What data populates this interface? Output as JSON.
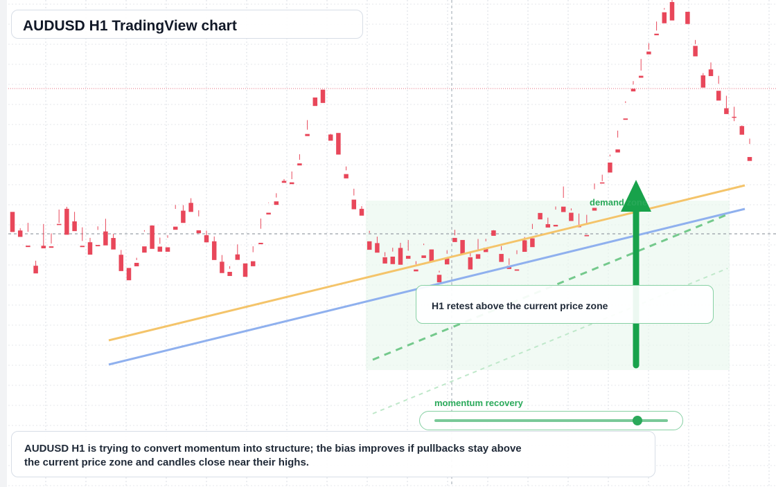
{
  "title": "AUDUSD H1 TradingView chart",
  "annotations": {
    "callout": "H1 retest above the current price zone",
    "demand_zone_label": "demand zone",
    "momentum_label": "momentum recovery",
    "momentum_level": 0.87,
    "summary": "AUDUSD H1 is trying to convert momentum into structure; the bias improves if pullbacks stay above the current price zone and candles close near their highs."
  },
  "colors": {
    "up": "#1a9c84",
    "down": "#e8475a",
    "accent_green": "#2aa95a",
    "orange_line": "#f4c46a",
    "blue_line": "#8fb0ee"
  },
  "chart_data": {
    "type": "candlestick",
    "title": "AUDUSD H1 TradingView chart",
    "xlabel": "",
    "ylabel": "",
    "x_tick_labels": [],
    "y_tick_labels": [],
    "price_range": [
      0,
      100
    ],
    "grid": true,
    "legend": "none",
    "candles": [
      [
        56.49,
        56.01,
        54.97,
        52.37
      ],
      [
        52.67,
        53.15,
        51.84,
        51.36
      ],
      [
        49.56,
        54.24,
        52.41,
        49.27
      ],
      [
        45.43,
        46.47,
        44.79,
        43.86
      ],
      [
        49.54,
        54.0,
        49.23,
        49.01
      ],
      [
        49.42,
        49.99,
        52.08,
        49.12
      ],
      [
        54.02,
        56.97,
        54.24,
        53.79
      ],
      [
        57.13,
        57.54,
        54.37,
        51.8
      ],
      [
        54.54,
        56.5,
        53.07,
        52.54
      ],
      [
        49.53,
        53.32,
        50.52,
        49.26
      ],
      [
        50.26,
        51.16,
        49.88,
        47.71
      ],
      [
        49.7,
        53.52,
        52.79,
        49.44
      ],
      [
        52.47,
        55.08,
        51.18,
        49.61
      ],
      [
        51.13,
        51.97,
        48.82,
        48.77
      ],
      [
        47.69,
        48.67,
        45.42,
        44.34
      ],
      [
        44.98,
        44.96,
        44.94,
        42.45
      ],
      [
        46.03,
        47.07,
        46.6,
        45.32
      ],
      [
        49.41,
        52.45,
        52.73,
        48.13
      ],
      [
        53.69,
        53.74,
        49.49,
        48.9
      ],
      [
        49.36,
        51.21,
        49.93,
        48.32
      ],
      [
        49.22,
        51.18,
        51.69,
        48.31
      ],
      [
        53.46,
        57.1,
        57.91,
        52.82
      ],
      [
        56.74,
        57.88,
        56.61,
        54.23
      ],
      [
        58.34,
        59.3,
        57.05,
        56.49
      ],
      [
        52.71,
        56.82,
        55.57,
        52.11
      ],
      [
        51.7,
        52.64,
        50.29,
        50.24
      ],
      [
        50.45,
        51.45,
        46.81,
        46.61
      ],
      [
        46.26,
        47.63,
        44.26,
        43.93
      ],
      [
        44.18,
        44.81,
        45.34,
        43.33
      ],
      [
        47.76,
        49.82,
        47.19,
        46.64
      ],
      [
        45.91,
        45.69,
        44.02,
        43.16
      ],
      [
        46.36,
        49.43,
        48.21,
        45.33
      ],
      [
        50.14,
        55.13,
        53.03,
        49.85
      ],
      [
        56.32,
        58.42,
        58.31,
        55.96
      ],
      [
        58.65,
        60.32,
        59.44,
        57.93
      ],
      [
        62.86,
        62.72,
        63.23,
        62.46
      ],
      [
        62.56,
        64.79,
        63.21,
        62.19
      ],
      [
        66.45,
        68.33,
        67.19,
        66.03
      ],
      [
        72.49,
        75.34,
        73.37,
        72.06
      ],
      [
        79.98,
        79.84,
        78.93,
        78.24
      ],
      [
        81.59,
        80.08,
        80.2,
        78.86
      ],
      [
        72.38,
        72.15,
        72.51,
        71.11
      ],
      [
        72.7,
        71.94,
        71.12,
        68.26
      ],
      [
        64.26,
        65.02,
        65.82,
        63.37
      ],
      [
        59.01,
        59.86,
        61.25,
        57.03
      ],
      [
        57.12,
        57.67,
        56.18,
        55.72
      ],
      [
        50.45,
        52.16,
        52.6,
        48.71
      ],
      [
        50.08,
        51.41,
        49.22,
        48.12
      ],
      [
        47.18,
        48.22,
        47.35,
        45.89
      ],
      [
        47.3,
        49.13,
        48.34,
        45.77
      ],
      [
        49.09,
        50.14,
        48.07,
        45.64
      ],
      [
        47.47,
        50.72,
        48.51,
        46.86
      ],
      [
        44.66,
        45.72,
        46.37,
        44.28
      ],
      [
        47.55,
        49.68,
        49.97,
        47.03
      ],
      [
        48.78,
        48.76,
        46.83,
        46.32
      ],
      [
        43.57,
        44.06,
        44.41,
        42.03
      ],
      [
        46.92,
        47.9,
        48.62,
        45.71
      ],
      [
        51.15,
        51.67,
        52.81,
        50.3
      ],
      [
        50.72,
        50.11,
        50.23,
        47.88
      ],
      [
        47.18,
        48.32,
        47.35,
        44.67
      ],
      [
        47.8,
        50.92,
        48.42,
        46.86
      ],
      [
        49.13,
        50.45,
        50.97,
        48.24
      ],
      [
        52.69,
        52.75,
        52.1,
        51.58
      ],
      [
        47.86,
        49.47,
        48.62,
        46.22
      ],
      [
        45.42,
        46.95,
        45.61,
        44.77
      ],
      [
        44.68,
        47.81,
        48.61,
        44.41
      ],
      [
        50.65,
        51.33,
        49.4,
        48.29
      ],
      [
        51.06,
        52.98,
        54.03,
        49.26
      ],
      [
        56.27,
        56.25,
        55.49,
        54.95
      ],
      [
        53.97,
        55.31,
        53.59,
        53.28
      ],
      [
        53.83,
        57.6,
        56.96,
        53.5
      ],
      [
        57.57,
        61.71,
        59.37,
        56.46
      ],
      [
        56.32,
        57.21,
        56.78,
        54.62
      ],
      [
        53.56,
        56.15,
        53.45,
        53.36
      ],
      [
        51.74,
        55.89,
        54.01,
        51.49
      ],
      [
        57.32,
        61.14,
        62.32,
        56.75
      ],
      [
        62.55,
        64.13,
        62.81,
        62.31
      ],
      [
        66.62,
        68.25,
        67.88,
        64.57
      ],
      [
        69.32,
        73.18,
        71.76,
        68.69
      ],
      [
        75.67,
        78.86,
        79.2,
        75.4
      ],
      [
        81.78,
        83.34,
        82.64,
        81.23
      ],
      [
        84.44,
        87.89,
        85.51,
        84.04
      ],
      [
        89.41,
        91.13,
        89.82,
        88.84
      ],
      [
        93.08,
        95.58,
        93.73,
        92.76
      ],
      [
        97.48,
        98.34,
        98.04,
        95.22
      ],
      [
        99.58,
        100.22,
        97.07,
        95.8
      ],
      [
        101.64,
        100.1,
        100.51,
        100.1
      ],
      [
        97.58,
        96.66,
        96.42,
        95.07
      ],
      [
        90.58,
        91.79,
        90.94,
        88.43
      ],
      [
        84.52,
        84.03,
        84.99,
        82.01
      ],
      [
        85.75,
        87.18,
        85.47,
        84.38
      ],
      [
        81.36,
        84.43,
        82.8,
        79.35
      ],
      [
        77.77,
        80.33,
        76.9,
        76.58
      ],
      [
        76.02,
        78.08,
        75.12,
        75.87
      ],
      [
        74.11,
        73.7,
        74.24,
        72.34
      ],
      [
        67.76,
        71.53,
        70.44,
        66.95
      ]
    ]
  }
}
